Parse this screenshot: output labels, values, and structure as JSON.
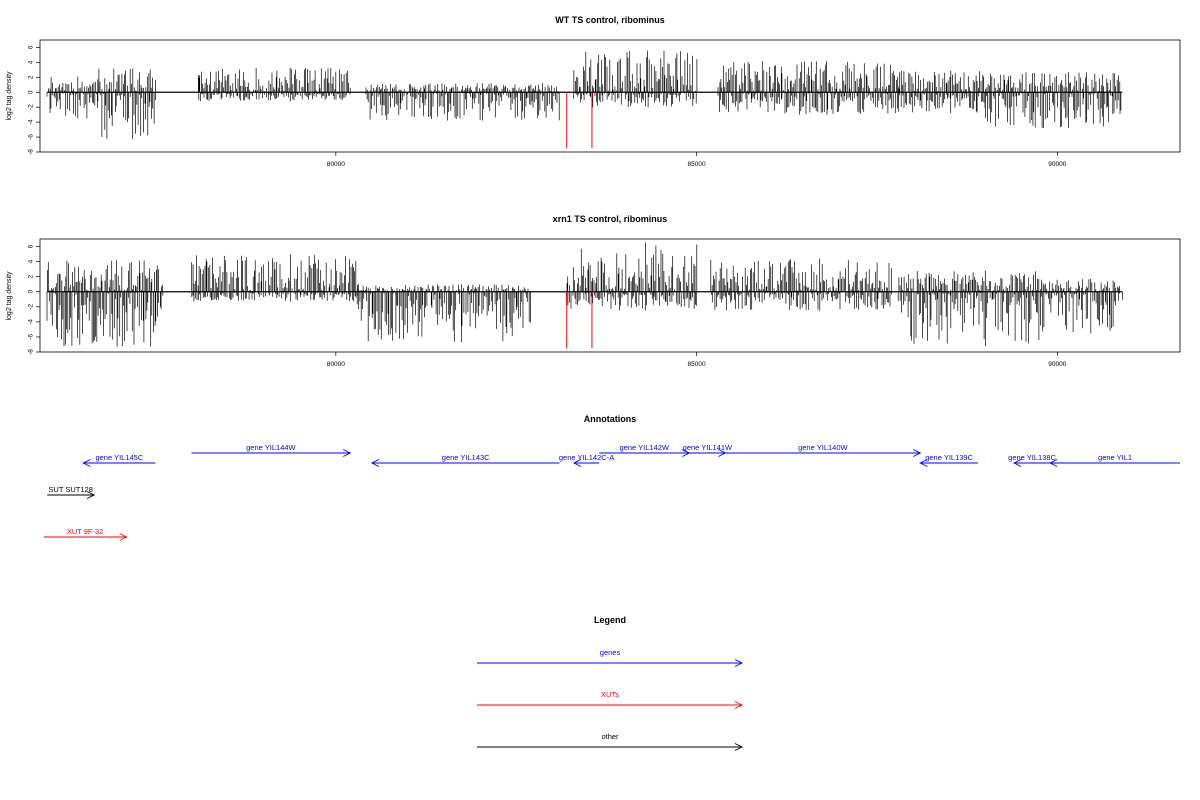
{
  "chart_data": [
    {
      "type": "bar",
      "title": "WT TS control, ribominus",
      "ylabel": "log2 tag density",
      "xlabel": "",
      "xlim": [
        75900,
        91700
      ],
      "ylim": [
        -8,
        7
      ],
      "grid": false,
      "x_ticks": [
        {
          "value": 80000,
          "label": "80000"
        },
        {
          "value": 85000,
          "label": "85000"
        },
        {
          "value": 90000,
          "label": "90000"
        }
      ],
      "y_ticks": [
        {
          "value": 6,
          "label": "6"
        },
        {
          "value": 4,
          "label": "4"
        },
        {
          "value": 2,
          "label": "2"
        },
        {
          "value": 0,
          "label": "0"
        },
        {
          "value": -2,
          "label": "-2"
        },
        {
          "value": -4,
          "label": "-4"
        },
        {
          "value": -6,
          "label": "-6"
        },
        {
          "value": -8,
          "label": "-8"
        }
      ],
      "baseline": {
        "start": 76000,
        "end": 90900
      },
      "markers": {
        "color": "#ff0000",
        "positions": [
          83200,
          83550
        ],
        "y": -7.5
      },
      "series": [
        {
          "values": [
            [
              76000,
              76700,
              -3.5
            ],
            [
              76000,
              76700,
              2.1
            ],
            [
              76700,
              77500,
              -6.3
            ],
            [
              76700,
              77500,
              3.2
            ],
            [
              78100,
              78100,
              2.3
            ],
            [
              78100,
              80200,
              3.3
            ],
            [
              78100,
              80200,
              -1.2
            ],
            [
              80400,
              83100,
              -3.8
            ],
            [
              80400,
              83100,
              1.2
            ],
            [
              83300,
              85000,
              5.6
            ],
            [
              83300,
              85000,
              -2.0
            ],
            [
              85300,
              87800,
              4.2
            ],
            [
              85300,
              87800,
              -3.0
            ],
            [
              87800,
              89000,
              -2.8
            ],
            [
              87800,
              89000,
              2.9
            ],
            [
              89000,
              90900,
              -4.8
            ],
            [
              89000,
              90900,
              2.7
            ]
          ]
        }
      ]
    },
    {
      "type": "bar",
      "title": "xrn1 TS control, ribominus",
      "ylabel": "log2 tag density",
      "xlabel": "",
      "xlim": [
        75900,
        91700
      ],
      "ylim": [
        -8,
        7
      ],
      "grid": false,
      "x_ticks": [
        {
          "value": 80000,
          "label": "80000"
        },
        {
          "value": 85000,
          "label": "85000"
        },
        {
          "value": 90000,
          "label": "90000"
        }
      ],
      "y_ticks": [
        {
          "value": 6,
          "label": "6"
        },
        {
          "value": 4,
          "label": "4"
        },
        {
          "value": 2,
          "label": "2"
        },
        {
          "value": 0,
          "label": "0"
        },
        {
          "value": -2,
          "label": "-2"
        },
        {
          "value": -4,
          "label": "-4"
        },
        {
          "value": -6,
          "label": "-6"
        },
        {
          "value": -8,
          "label": "-8"
        }
      ],
      "baseline": {
        "start": 76000,
        "end": 90900
      },
      "markers": {
        "color": "#ff0000",
        "positions": [
          83200,
          83550
        ],
        "y": -7.5
      },
      "series": [
        {
          "values": [
            [
              76000,
              77600,
              -7.3
            ],
            [
              76000,
              77600,
              4.2
            ],
            [
              78000,
              80300,
              5.0
            ],
            [
              78000,
              80300,
              -1.3
            ],
            [
              80300,
              82700,
              -6.7
            ],
            [
              80300,
              82700,
              1.0
            ],
            [
              83200,
              85000,
              6.5
            ],
            [
              83200,
              85000,
              -2.5
            ],
            [
              85200,
              87700,
              4.4
            ],
            [
              85200,
              87700,
              -2.5
            ],
            [
              87800,
              89800,
              -7.2
            ],
            [
              87800,
              89800,
              2.8
            ],
            [
              89800,
              90900,
              -5.5
            ],
            [
              89800,
              90900,
              1.7
            ]
          ]
        }
      ]
    },
    {
      "type": "annotation-track",
      "title": "Annotations",
      "xlim": [
        75900,
        91700
      ],
      "items": [
        {
          "label": "gene YIL145C",
          "start": 76500,
          "end": 77500,
          "strand": "-",
          "row": 2,
          "color": "#0000ff"
        },
        {
          "label": "gene YIL144W",
          "start": 78000,
          "end": 80200,
          "strand": "+",
          "row": 0,
          "color": "#0000ff"
        },
        {
          "label": "gene YIL143C",
          "start": 80500,
          "end": 83100,
          "strand": "-",
          "row": 2,
          "color": "#0000ff"
        },
        {
          "label": "gene YIL142C-A",
          "start": 83300,
          "end": 83650,
          "strand": "-",
          "row": 2,
          "color": "#0000ff"
        },
        {
          "label": "gene YIL142W",
          "start": 83650,
          "end": 84900,
          "strand": "+",
          "row": 1,
          "color": "#0000ff"
        },
        {
          "label": "gene YIL141W",
          "start": 84900,
          "end": 85400,
          "strand": "+",
          "row": 1,
          "color": "#0000ff"
        },
        {
          "label": "gene YIL140W",
          "start": 85400,
          "end": 88100,
          "strand": "+",
          "row": 1,
          "color": "#0000ff"
        },
        {
          "label": "gene YIL139C",
          "start": 88100,
          "end": 88900,
          "strand": "-",
          "row": 2,
          "color": "#0000ff"
        },
        {
          "label": "gene YIL138C",
          "start": 89400,
          "end": 89900,
          "strand": "-",
          "row": 2,
          "color": "#0000ff"
        },
        {
          "label": "gene YIL1",
          "start": 89900,
          "end": 91700,
          "strand": "-",
          "row": 2,
          "color": "#0000ff"
        },
        {
          "label": "SUT SUT128",
          "start": 76000,
          "end": 76650,
          "strand": "+",
          "row": 3,
          "color": "#000000"
        },
        {
          "label": "XUT 9F-32",
          "start": 75950,
          "end": 77100,
          "strand": "+",
          "row": 4,
          "color": "#ff0000"
        }
      ]
    },
    {
      "type": "legend",
      "title": "Legend",
      "entries": [
        {
          "label": "genes",
          "color": "#0000ff"
        },
        {
          "label": "XUTs",
          "color": "#ff0000"
        },
        {
          "label": "other",
          "color": "#000000"
        }
      ]
    }
  ]
}
